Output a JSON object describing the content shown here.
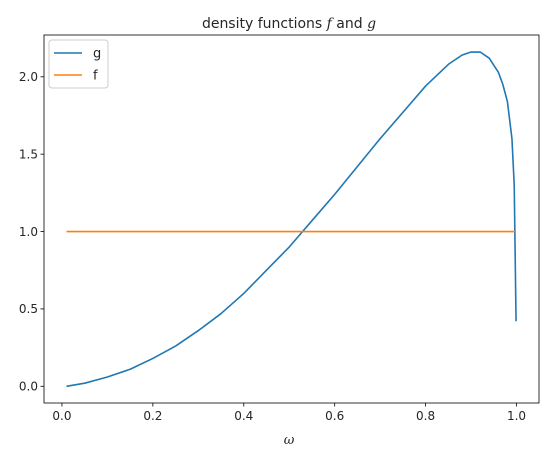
{
  "chart_data": {
    "type": "line",
    "title": "density functions f and g",
    "title_parts": [
      {
        "text": "density functions ",
        "italic": false
      },
      {
        "text": "f",
        "italic": true
      },
      {
        "text": " and ",
        "italic": false
      },
      {
        "text": "g",
        "italic": true
      }
    ],
    "xlabel": "ω",
    "ylabel": "",
    "xlim": [
      -0.0395,
      1.0495
    ],
    "ylim": [
      -0.108,
      2.27
    ],
    "xticks": [
      0.0,
      0.2,
      0.4,
      0.6,
      0.8,
      1.0
    ],
    "xtick_labels": [
      "0.0",
      "0.2",
      "0.4",
      "0.6",
      "0.8",
      "1.0"
    ],
    "yticks": [
      0.0,
      0.5,
      1.0,
      1.5,
      2.0
    ],
    "ytick_labels": [
      "0.0",
      "0.5",
      "1.0",
      "1.5",
      "2.0"
    ],
    "grid": false,
    "legend_position": "top-left",
    "series": [
      {
        "name": "g",
        "color": "#1f77b4",
        "x": [
          0.01,
          0.05,
          0.1,
          0.15,
          0.2,
          0.25,
          0.3,
          0.35,
          0.4,
          0.45,
          0.5,
          0.55,
          0.6,
          0.65,
          0.7,
          0.75,
          0.8,
          0.85,
          0.88,
          0.9,
          0.92,
          0.94,
          0.96,
          0.97,
          0.98,
          0.99,
          0.995,
          0.999
        ],
        "y": [
          0.0,
          0.02,
          0.06,
          0.11,
          0.18,
          0.26,
          0.36,
          0.47,
          0.6,
          0.75,
          0.9,
          1.07,
          1.24,
          1.42,
          1.6,
          1.77,
          1.94,
          2.08,
          2.14,
          2.16,
          2.16,
          2.12,
          2.03,
          1.95,
          1.84,
          1.6,
          1.3,
          0.42
        ]
      },
      {
        "name": "f",
        "color": "#ff7f0e",
        "x": [
          0.01,
          0.999
        ],
        "y": [
          1.0,
          1.0
        ]
      }
    ]
  }
}
